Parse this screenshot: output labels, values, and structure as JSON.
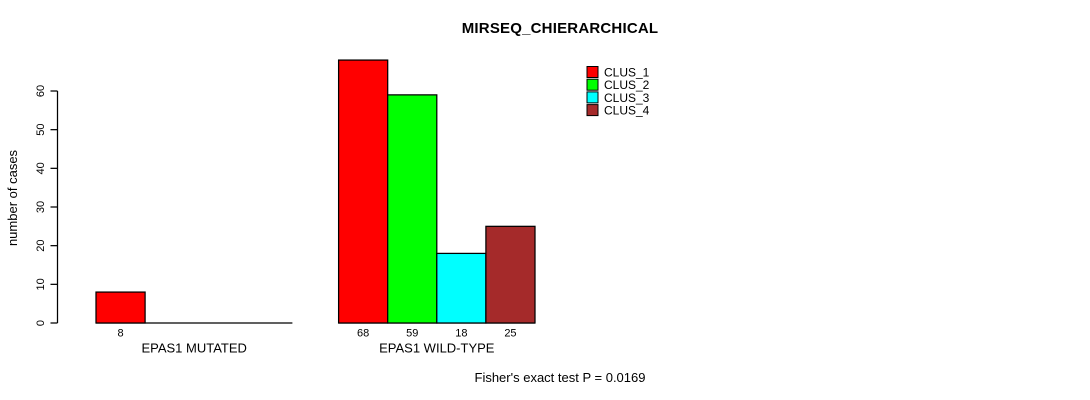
{
  "chart_data": {
    "type": "bar",
    "title": "MIRSEQ_CHIERARCHICAL",
    "ylabel": "number of cases",
    "xlabel": "",
    "ylim": [
      0,
      60
    ],
    "yticks": [
      0,
      10,
      20,
      30,
      40,
      50,
      60
    ],
    "grid": false,
    "background": "#ffffff",
    "axis_color": "#000000",
    "bar_border_color": "#000000",
    "categories": [
      "EPAS1 MUTATED",
      "EPAS1 WILD-TYPE"
    ],
    "series": [
      {
        "name": "CLUS_1",
        "color": "#ff0000",
        "values": [
          8,
          68
        ]
      },
      {
        "name": "CLUS_2",
        "color": "#00ff00",
        "values": [
          0,
          59
        ]
      },
      {
        "name": "CLUS_3",
        "color": "#00ffff",
        "values": [
          0,
          18
        ]
      },
      {
        "name": "CLUS_4",
        "color": "#a52a2a",
        "values": [
          0,
          25
        ]
      }
    ],
    "value_labels": [
      [
        "8"
      ],
      [
        "68",
        "59",
        "18",
        "25"
      ]
    ],
    "legend": {
      "position": "top-right",
      "frame": false,
      "entries": [
        {
          "label": "CLUS_1",
          "color": "#ff0000"
        },
        {
          "label": "CLUS_2",
          "color": "#00ff00"
        },
        {
          "label": "CLUS_3",
          "color": "#00ffff"
        },
        {
          "label": "CLUS_4",
          "color": "#a52a2a"
        }
      ]
    },
    "annotation": "Fisher's exact test P = 0.0169"
  }
}
